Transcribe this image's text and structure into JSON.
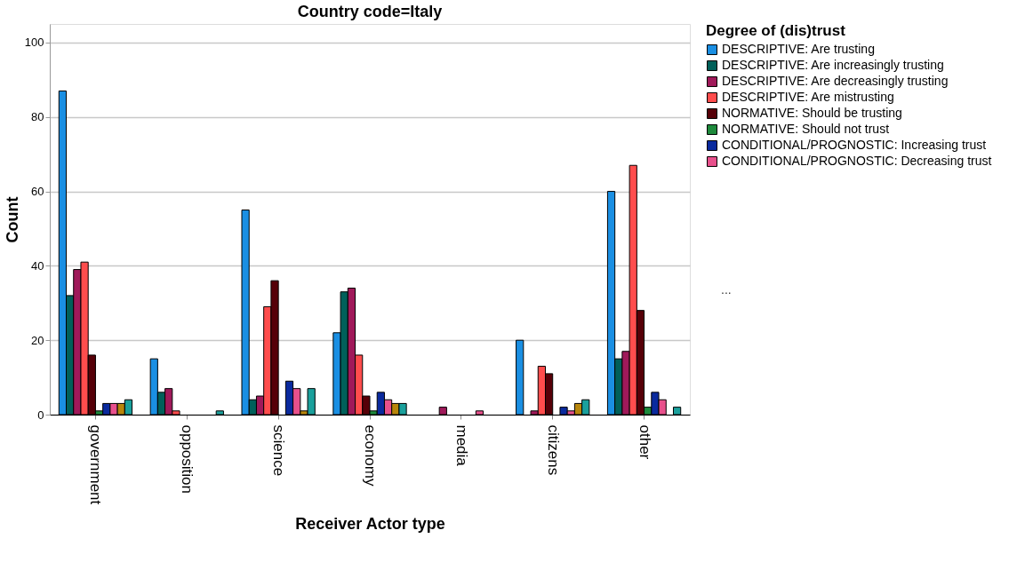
{
  "chart_data": {
    "type": "bar",
    "title": "Country code=Italy",
    "xlabel": "Receiver Actor type",
    "ylabel": "Count",
    "legend_title": "Degree of (dis)trust",
    "categories": [
      "government",
      "opposition",
      "science",
      "economy",
      "media",
      "citizens",
      "other"
    ],
    "series": [
      {
        "name": "DESCRIPTIVE: Are trusting",
        "color": "#1a8fe3",
        "values": [
          87,
          15,
          55,
          22,
          null,
          20,
          60
        ]
      },
      {
        "name": "DESCRIPTIVE: Are increasingly trusting",
        "color": "#00605a",
        "values": [
          32,
          6,
          4,
          33,
          null,
          null,
          15
        ]
      },
      {
        "name": "DESCRIPTIVE: Are decreasingly trusting",
        "color": "#a0195a",
        "values": [
          39,
          7,
          5,
          34,
          2,
          1,
          17
        ]
      },
      {
        "name": "DESCRIPTIVE: Are mistrusting",
        "color": "#ff4d4d",
        "values": [
          41,
          1,
          29,
          16,
          null,
          13,
          67
        ]
      },
      {
        "name": "NORMATIVE: Should be trusting",
        "color": "#560008",
        "values": [
          16,
          null,
          36,
          5,
          null,
          11,
          28
        ]
      },
      {
        "name": "NORMATIVE: Should not trust",
        "color": "#1e8a3c",
        "values": [
          1,
          null,
          null,
          1,
          null,
          null,
          2
        ]
      },
      {
        "name": "CONDITIONAL/PROGNOSTIC: Increasing trust",
        "color": "#0a2a9e",
        "values": [
          3,
          null,
          9,
          6,
          null,
          2,
          6
        ]
      },
      {
        "name": "CONDITIONAL/PROGNOSTIC: Decreasing trust",
        "color": "#e8508c",
        "values": [
          3,
          null,
          7,
          4,
          1,
          1,
          4
        ]
      },
      {
        "color": "#b8860b",
        "values": [
          3,
          null,
          1,
          3,
          null,
          3,
          null
        ]
      },
      {
        "color": "#1aa09c",
        "values": [
          4,
          1,
          7,
          3,
          null,
          4,
          2
        ]
      }
    ],
    "ylim": [
      0,
      105
    ],
    "yticks": [
      0,
      20,
      40,
      60,
      80,
      100
    ],
    "grid": "y",
    "legend": "top right",
    "annotations": [
      "..."
    ]
  }
}
